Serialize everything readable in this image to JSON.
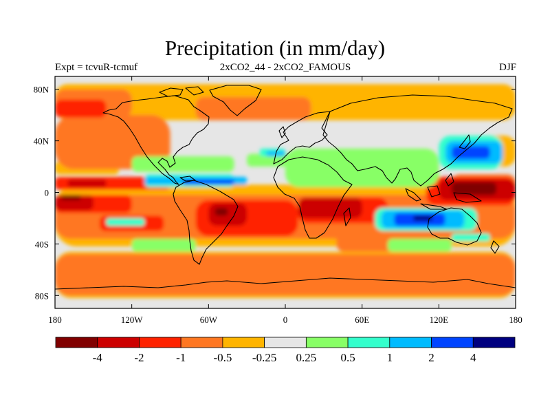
{
  "header": {
    "title": "Precipitation (in mm/day)",
    "left": "Expt = tcvuR-tcmuf",
    "center": "2xCO2_44 - 2xCO2_FAMOUS",
    "right": "DJF"
  },
  "map": {
    "projection": "cylindrical-equidistant",
    "lon_range": [
      -180,
      180
    ],
    "lat_range": [
      -90,
      90
    ],
    "x_ticks": [
      {
        "lon": -180,
        "label": "180"
      },
      {
        "lon": -120,
        "label": "120W"
      },
      {
        "lon": -60,
        "label": "60W"
      },
      {
        "lon": 0,
        "label": "0"
      },
      {
        "lon": 60,
        "label": "60E"
      },
      {
        "lon": 120,
        "label": "120E"
      },
      {
        "lon": 180,
        "label": "180"
      }
    ],
    "y_ticks": [
      {
        "lat": 80,
        "label": "80N"
      },
      {
        "lat": 40,
        "label": "40N"
      },
      {
        "lat": 0,
        "label": "0"
      },
      {
        "lat": -40,
        "label": "40S"
      },
      {
        "lat": -80,
        "label": "80S"
      }
    ]
  },
  "colorbar": {
    "colors": [
      "#800000",
      "#cc0000",
      "#ff2200",
      "#ff7722",
      "#ffb400",
      "#e6e6e6",
      "#88ff66",
      "#33ffcc",
      "#00bbff",
      "#0044ff",
      "#00007f"
    ],
    "labels": [
      "-4",
      "-2",
      "-1",
      "-0.5",
      "-0.25",
      "0.25",
      "0.5",
      "1",
      "2",
      "4"
    ]
  },
  "field_regions": [
    {
      "level": -0.25,
      "lon": [
        -180,
        180
      ],
      "lat": [
        56,
        84
      ]
    },
    {
      "level": -0.25,
      "lon": [
        -180,
        180
      ],
      "lat": [
        -82,
        -46
      ]
    },
    {
      "level": -0.25,
      "lon": [
        -180,
        180
      ],
      "lat": [
        -42,
        6
      ]
    },
    {
      "level": -0.25,
      "lon": [
        150,
        180
      ],
      "lat": [
        20,
        44
      ]
    },
    {
      "level": -0.25,
      "lon": [
        -180,
        -130
      ],
      "lat": [
        14,
        24
      ]
    },
    {
      "level": -0.5,
      "lon": [
        -180,
        180
      ],
      "lat": [
        -80,
        -48
      ]
    },
    {
      "level": -0.5,
      "lon": [
        -180,
        -120
      ],
      "lat": [
        58,
        80
      ]
    },
    {
      "level": -0.5,
      "lon": [
        -70,
        20
      ],
      "lat": [
        56,
        74
      ]
    },
    {
      "level": -0.5,
      "lon": [
        -180,
        -90
      ],
      "lat": [
        18,
        60
      ]
    },
    {
      "level": -0.5,
      "lon": [
        -180,
        180
      ],
      "lat": [
        -36,
        -2
      ]
    },
    {
      "level": -0.5,
      "lon": [
        130,
        180
      ],
      "lat": [
        -4,
        14
      ]
    },
    {
      "level": -0.5,
      "lon": [
        40,
        110
      ],
      "lat": [
        -46,
        -30
      ]
    },
    {
      "level": -1,
      "lon": [
        -180,
        -120
      ],
      "lat": [
        -16,
        -2
      ]
    },
    {
      "level": -1,
      "lon": [
        -180,
        -90
      ],
      "lat": [
        2,
        12
      ]
    },
    {
      "level": -1,
      "lon": [
        -180,
        -140
      ],
      "lat": [
        58,
        72
      ]
    },
    {
      "level": -1,
      "lon": [
        -70,
        10
      ],
      "lat": [
        -34,
        -6
      ]
    },
    {
      "level": -1,
      "lon": [
        10,
        80
      ],
      "lat": [
        -24,
        -4
      ]
    },
    {
      "level": -1,
      "lon": [
        110,
        180
      ],
      "lat": [
        -10,
        12
      ]
    },
    {
      "level": -1,
      "lon": [
        -145,
        -95
      ],
      "lat": [
        -30,
        -18
      ]
    },
    {
      "level": -2,
      "lon": [
        -180,
        -150
      ],
      "lat": [
        -14,
        -2
      ]
    },
    {
      "level": -2,
      "lon": [
        -170,
        -140
      ],
      "lat": [
        4,
        10
      ]
    },
    {
      "level": -2,
      "lon": [
        -60,
        -30
      ],
      "lat": [
        -26,
        -8
      ]
    },
    {
      "level": -2,
      "lon": [
        10,
        60
      ],
      "lat": [
        -20,
        -4
      ]
    },
    {
      "level": -2,
      "lon": [
        120,
        180
      ],
      "lat": [
        -6,
        10
      ]
    },
    {
      "level": -4,
      "lon": [
        130,
        165
      ],
      "lat": [
        -2,
        8
      ]
    },
    {
      "level": -4,
      "lon": [
        -55,
        -45
      ],
      "lat": [
        -18,
        -12
      ]
    },
    {
      "level": -4,
      "lon": [
        -175,
        -160
      ],
      "lat": [
        -6,
        -2
      ]
    },
    {
      "level": 0.25,
      "lon": [
        -120,
        -40
      ],
      "lat": [
        16,
        28
      ]
    },
    {
      "level": 0.25,
      "lon": [
        0,
        120
      ],
      "lat": [
        4,
        34
      ]
    },
    {
      "level": 0.25,
      "lon": [
        80,
        130
      ],
      "lat": [
        -46,
        -36
      ]
    },
    {
      "level": 0.25,
      "lon": [
        -120,
        -70
      ],
      "lat": [
        -46,
        -36
      ]
    },
    {
      "level": 0.25,
      "lon": [
        -30,
        30
      ],
      "lat": [
        20,
        30
      ]
    },
    {
      "level": 0.5,
      "lon": [
        -110,
        -40
      ],
      "lat": [
        4,
        14
      ]
    },
    {
      "level": 0.5,
      "lon": [
        -20,
        0
      ],
      "lat": [
        28,
        34
      ]
    },
    {
      "level": 0.5,
      "lon": [
        120,
        170
      ],
      "lat": [
        18,
        44
      ]
    },
    {
      "level": 0.5,
      "lon": [
        70,
        150
      ],
      "lat": [
        -30,
        -12
      ]
    },
    {
      "level": 0.5,
      "lon": [
        -140,
        -110
      ],
      "lat": [
        -26,
        -20
      ]
    },
    {
      "level": 0.5,
      "lon": [
        130,
        160
      ],
      "lat": [
        -38,
        -32
      ]
    },
    {
      "level": 1,
      "lon": [
        -110,
        -30
      ],
      "lat": [
        6,
        12
      ]
    },
    {
      "level": 1,
      "lon": [
        -15,
        0
      ],
      "lat": [
        28,
        32
      ]
    },
    {
      "level": 1,
      "lon": [
        125,
        170
      ],
      "lat": [
        22,
        40
      ]
    },
    {
      "level": 1,
      "lon": [
        75,
        140
      ],
      "lat": [
        -28,
        -14
      ]
    },
    {
      "level": 2,
      "lon": [
        -80,
        -40
      ],
      "lat": [
        6,
        10
      ]
    },
    {
      "level": 2,
      "lon": [
        130,
        160
      ],
      "lat": [
        26,
        36
      ]
    },
    {
      "level": 2,
      "lon": [
        85,
        125
      ],
      "lat": [
        -26,
        -16
      ]
    },
    {
      "level": 4,
      "lon": [
        100,
        115
      ],
      "lat": [
        -22,
        -18
      ]
    }
  ]
}
